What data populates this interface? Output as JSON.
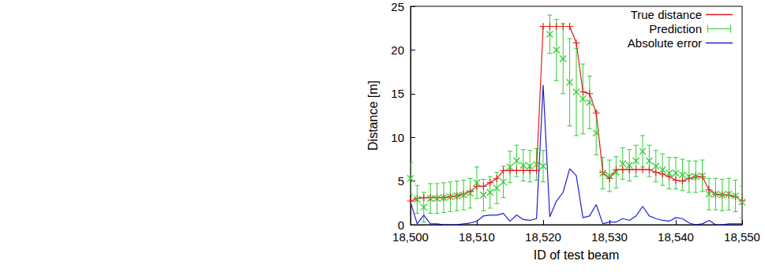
{
  "chart_data": {
    "type": "line",
    "xlabel": "ID of test beam",
    "ylabel": "Distance [m]",
    "xlim": [
      18500,
      18550
    ],
    "xticks": [
      18500,
      18510,
      18520,
      18530,
      18540,
      18550
    ],
    "ylim": [
      0,
      25
    ],
    "yticks": [
      0,
      5,
      10,
      15,
      20,
      25
    ],
    "grid": false,
    "legend": "top right",
    "x": [
      18500,
      18501,
      18502,
      18503,
      18504,
      18505,
      18506,
      18507,
      18508,
      18509,
      18510,
      18511,
      18512,
      18513,
      18514,
      18515,
      18516,
      18517,
      18518,
      18519,
      18520,
      18521,
      18522,
      18523,
      18524,
      18525,
      18526,
      18527,
      18528,
      18529,
      18530,
      18531,
      18532,
      18533,
      18534,
      18535,
      18536,
      18537,
      18538,
      18539,
      18540,
      18541,
      18542,
      18543,
      18544,
      18545,
      18546,
      18547,
      18548,
      18549,
      18550
    ],
    "series": [
      {
        "name": "True distance",
        "color": "#e31a1c",
        "marker": "plus",
        "line_style": "solid",
        "values": [
          2.7,
          3.0,
          3.1,
          3.1,
          3.1,
          3.1,
          3.2,
          3.3,
          3.5,
          3.8,
          4.4,
          4.4,
          4.8,
          5.3,
          6.2,
          6.2,
          6.2,
          6.2,
          6.2,
          6.2,
          22.7,
          22.7,
          22.7,
          22.7,
          22.7,
          20.8,
          15.2,
          15.0,
          12.8,
          6.0,
          5.3,
          6.3,
          6.3,
          6.3,
          6.3,
          6.3,
          6.3,
          6.0,
          5.8,
          5.5,
          5.1,
          5.0,
          5.3,
          5.5,
          5.5,
          4.0,
          3.5,
          3.4,
          3.4,
          3.2,
          2.7
        ]
      },
      {
        "name": "Prediction",
        "color": "#33cc33",
        "marker": "x",
        "line_style": "none",
        "values": [
          5.3,
          2.9,
          2.0,
          3.0,
          3.0,
          3.1,
          3.2,
          3.3,
          3.4,
          3.6,
          4.8,
          3.4,
          3.7,
          4.2,
          4.9,
          6.6,
          7.3,
          6.8,
          6.7,
          6.9,
          6.7,
          21.8,
          20.0,
          19.0,
          16.3,
          15.2,
          14.4,
          14.0,
          10.5,
          5.9,
          5.6,
          6.0,
          7.0,
          6.8,
          7.3,
          8.4,
          7.3,
          6.7,
          6.3,
          5.9,
          5.9,
          5.7,
          5.5,
          5.5,
          5.6,
          3.5,
          3.5,
          3.4,
          3.5,
          3.3,
          2.6
        ],
        "errors": [
          1.8,
          1.6,
          1.7,
          1.7,
          1.7,
          1.7,
          1.7,
          1.7,
          1.7,
          1.7,
          1.8,
          1.8,
          1.8,
          1.8,
          1.8,
          1.8,
          1.8,
          1.8,
          1.8,
          1.8,
          1.8,
          2.2,
          3.5,
          4.0,
          5.0,
          5.0,
          4.0,
          3.0,
          2.5,
          1.8,
          1.8,
          1.8,
          1.8,
          1.8,
          1.8,
          1.8,
          1.8,
          1.8,
          1.8,
          1.8,
          1.8,
          1.8,
          1.8,
          1.8,
          1.8,
          1.8,
          1.8,
          1.8,
          1.8,
          1.8,
          1.8
        ]
      },
      {
        "name": "Absolute error",
        "color": "#1f1fd6",
        "marker": "none",
        "line_style": "solid",
        "values": [
          2.6,
          0.1,
          1.1,
          0.1,
          0.1,
          0.0,
          0.0,
          0.0,
          0.1,
          0.2,
          0.4,
          1.0,
          1.1,
          1.1,
          1.3,
          0.4,
          1.1,
          0.6,
          0.5,
          0.7,
          16.0,
          0.9,
          2.7,
          3.7,
          6.4,
          5.6,
          0.8,
          1.0,
          2.3,
          0.1,
          0.3,
          0.3,
          0.7,
          0.5,
          1.0,
          2.1,
          1.0,
          0.7,
          0.5,
          0.4,
          0.8,
          0.7,
          0.2,
          0.0,
          0.1,
          0.5,
          0.0,
          0.0,
          0.1,
          0.1,
          0.1
        ]
      }
    ]
  }
}
